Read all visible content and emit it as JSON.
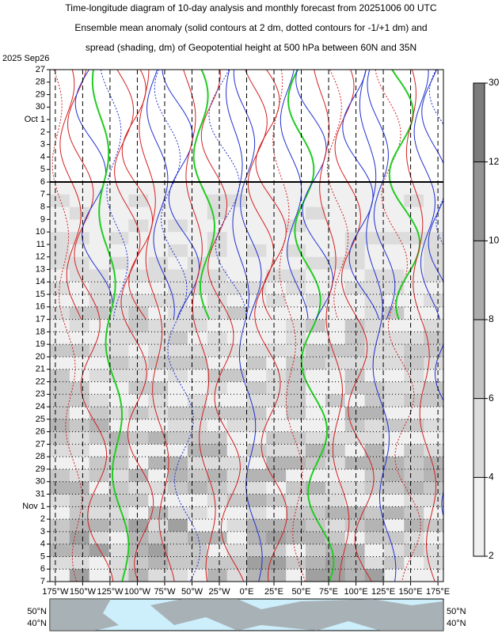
{
  "chart_data": {
    "type": "hovmoller",
    "title": [
      "Time-longitude diagram of 10-day analysis and monthly forecast from 20251006 00 UTC",
      "Ensemble mean anomaly (solid contours at 2 dm, dotted contours for -1/+1 dm) and",
      "spread (shading, dm) of Geopotential height at 500 hPa between 60N and 35N"
    ],
    "start_label": "2025 Sep26",
    "dates": [
      "27",
      {
        "label": "28",
        "color": "#e00000"
      },
      "29",
      "30",
      "Oct 1",
      "2",
      "3",
      "4",
      {
        "label": "5",
        "color": "#e00000"
      },
      "6",
      "7",
      "8",
      "9",
      "10",
      "11",
      {
        "label": "12",
        "color": "#e00000"
      },
      "13",
      "14",
      "15",
      "16",
      "17",
      "18",
      {
        "label": "19",
        "color": "#e00000"
      },
      "20",
      "21",
      "22",
      "23",
      "24",
      "25",
      {
        "label": "26",
        "color": "#e00000"
      },
      "27",
      "28",
      "29",
      "30",
      "31",
      "Nov 1",
      {
        "label": "2",
        "color": "#e00000"
      },
      "3",
      "4",
      "5",
      "6",
      "7"
    ],
    "xlim": [
      -180,
      180
    ],
    "xticks": [
      {
        "value": -175,
        "label": "175°W"
      },
      {
        "value": -150,
        "label": "150°W"
      },
      {
        "value": -125,
        "label": "125°W"
      },
      {
        "value": -100,
        "label": "100°W"
      },
      {
        "value": -75,
        "label": "75°W"
      },
      {
        "value": -50,
        "label": "50°W"
      },
      {
        "value": -25,
        "label": "25°W"
      },
      {
        "value": 0,
        "label": "0°E"
      },
      {
        "value": 25,
        "label": "25°E"
      },
      {
        "value": 50,
        "label": "50°E"
      },
      {
        "value": 75,
        "label": "75°E"
      },
      {
        "value": 100,
        "label": "100°E"
      },
      {
        "value": 125,
        "label": "125°E"
      },
      {
        "value": 150,
        "label": "150°E"
      },
      {
        "value": 175,
        "label": "175°E"
      }
    ],
    "colorbar": {
      "ticks": [
        2,
        4,
        6,
        8,
        10,
        12,
        30
      ],
      "color": "#1a1a8c"
    },
    "map_labels": [
      "50°N",
      "40°N"
    ]
  }
}
